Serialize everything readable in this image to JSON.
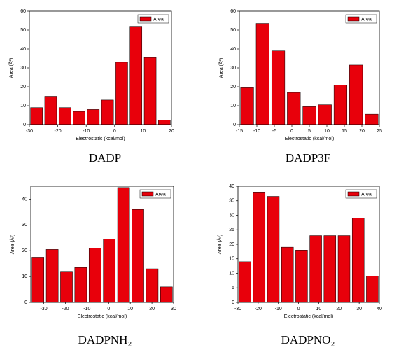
{
  "chart_data": [
    {
      "type": "histogram",
      "caption": "DADP",
      "xlabel": "Electrostatic (kcal/mol)",
      "ylabel": "Area (Å²)",
      "bins": [
        -30,
        -25,
        -20,
        -15,
        -10,
        -5,
        0,
        5,
        10,
        15,
        20
      ],
      "series": [
        {
          "name": "Area",
          "color": "#e8000b",
          "values": [
            9,
            15,
            9,
            7,
            8,
            13,
            33,
            52,
            35.5,
            2.5
          ]
        }
      ],
      "xlim": [
        -30,
        20
      ],
      "xticks": [
        -30,
        -20,
        -10,
        0,
        10,
        20
      ],
      "ylim": [
        0,
        60
      ],
      "yticks": [
        0,
        10,
        20,
        30,
        40,
        50,
        60
      ],
      "legend": "upper right"
    },
    {
      "type": "histogram",
      "caption": "DADP3F",
      "xlabel": "Electrostatic (kcal/mol)",
      "ylabel": "Area (Å²)",
      "bins": [
        -15,
        -10.56,
        -6.11,
        -1.67,
        2.78,
        7.22,
        11.67,
        16.11,
        20.56,
        25
      ],
      "series": [
        {
          "name": "Area",
          "color": "#e8000b",
          "values": [
            19.5,
            53.5,
            39,
            17,
            9.5,
            10.5,
            21,
            31.5,
            5.5
          ]
        }
      ],
      "xlim": [
        -15,
        25
      ],
      "xticks": [
        -15,
        -10,
        -5,
        0,
        5,
        10,
        15,
        20,
        25
      ],
      "ylim": [
        0,
        60
      ],
      "yticks": [
        0,
        10,
        20,
        30,
        40,
        50,
        60
      ],
      "legend": "upper right"
    },
    {
      "type": "histogram",
      "caption": "DADPNH₂",
      "xlabel": "Electrostatic (kcal/mol)",
      "ylabel": "Area (Å²)",
      "bins": [
        -36,
        -29.4,
        -22.8,
        -16.2,
        -9.6,
        -3,
        3.6,
        10.2,
        16.8,
        23.4,
        30
      ],
      "series": [
        {
          "name": "Area",
          "color": "#e8000b",
          "values": [
            17.5,
            20.5,
            12,
            13.5,
            21,
            24.5,
            44.5,
            36,
            13,
            6
          ]
        }
      ],
      "xlim": [
        -36,
        30
      ],
      "xticks": [
        -30,
        -20,
        -10,
        0,
        10,
        20,
        30
      ],
      "ylim": [
        0,
        45
      ],
      "yticks": [
        0,
        10,
        20,
        30,
        40
      ],
      "legend": "upper right"
    },
    {
      "type": "histogram",
      "caption": "DADPNO₂",
      "xlabel": "Electrostatic (kcal/mol)",
      "ylabel": "Area (Å²)",
      "bins": [
        -30,
        -23,
        -16,
        -9,
        -2,
        5,
        12,
        19,
        26,
        33,
        40
      ],
      "series": [
        {
          "name": "Area",
          "color": "#e8000b",
          "values": [
            14,
            38,
            36.5,
            19,
            18,
            23,
            23,
            23,
            29,
            9
          ]
        }
      ],
      "xlim": [
        -30,
        40
      ],
      "xticks": [
        -30,
        -20,
        -10,
        0,
        10,
        20,
        30,
        40
      ],
      "ylim": [
        0,
        40
      ],
      "yticks": [
        0,
        5,
        10,
        15,
        20,
        25,
        30,
        35,
        40
      ],
      "legend": "upper right"
    }
  ]
}
